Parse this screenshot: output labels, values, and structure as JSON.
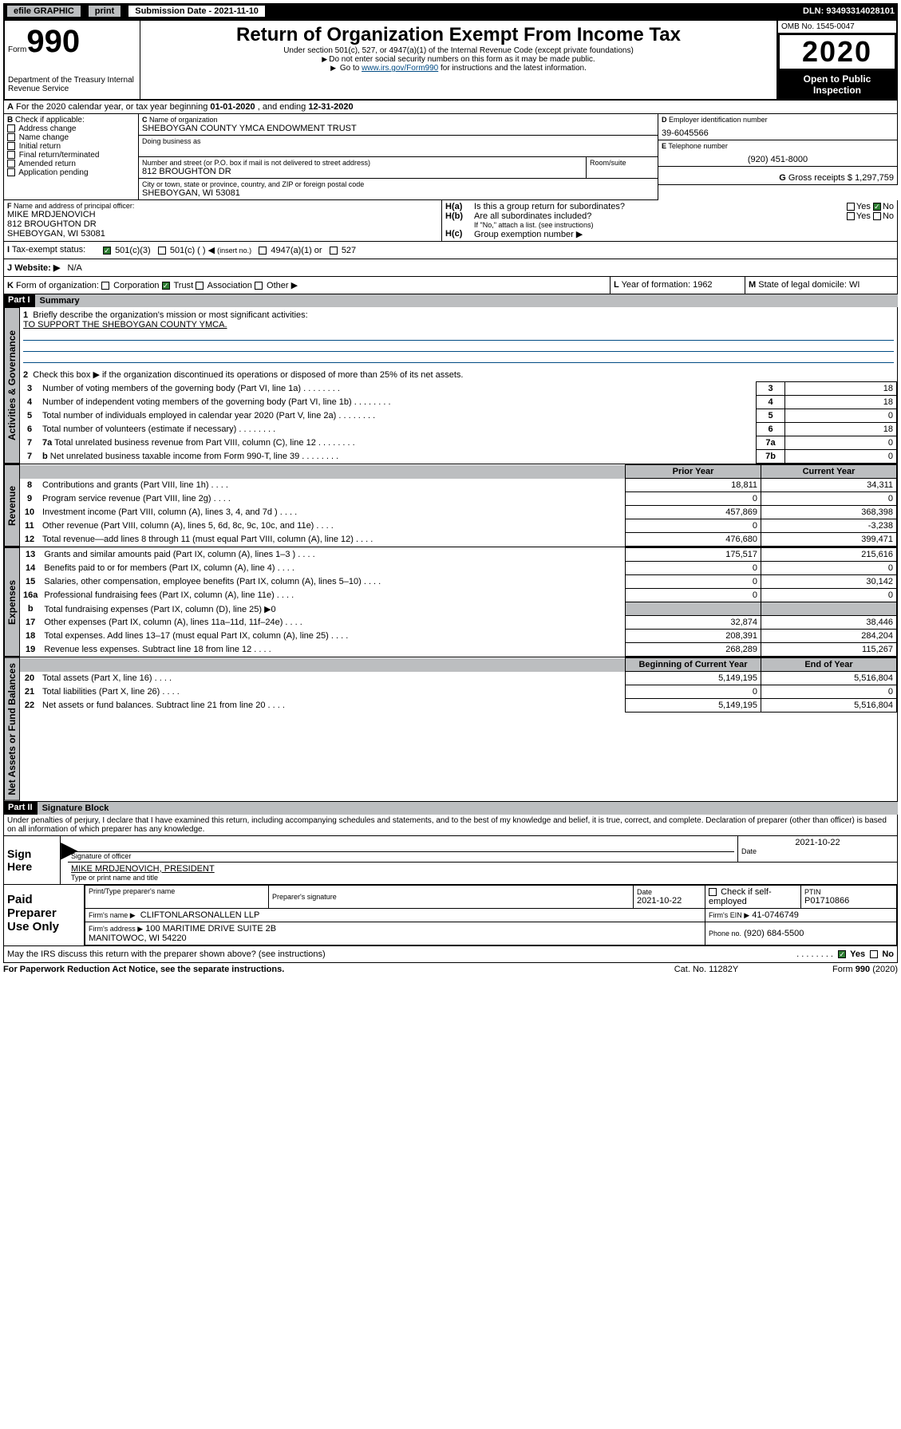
{
  "topbar": {
    "efile": "efile GRAPHIC",
    "print": "print",
    "sub_label": "Submission Date - 2021-11-10",
    "dln": "DLN: 93493314028101"
  },
  "header": {
    "form": "Form",
    "formno": "990",
    "dept": "Department of the Treasury\nInternal Revenue Service",
    "title": "Return of Organization Exempt From Income Tax",
    "subtitle": "Under section 501(c), 527, or 4947(a)(1) of the Internal Revenue Code (except private foundations)",
    "warn1": "Do not enter social security numbers on this form as it may be made public.",
    "warn2_pre": "Go to ",
    "warn2_link": "www.irs.gov/Form990",
    "warn2_post": " for instructions and the latest information.",
    "omb": "OMB No. 1545-0047",
    "year": "2020",
    "open": "Open to Public\nInspection"
  },
  "periodA": {
    "text_pre": "For the 2020 calendar year, or tax year beginning ",
    "begin": "01-01-2020",
    "mid": " , and ending ",
    "end": "12-31-2020"
  },
  "boxB": {
    "label": "Check if applicable:",
    "items": [
      "Address change",
      "Name change",
      "Initial return",
      "Final return/terminated",
      "Amended return",
      "Application pending"
    ]
  },
  "boxC": {
    "name_label": "Name of organization",
    "name": "SHEBOYGAN COUNTY YMCA ENDOWMENT TRUST",
    "dba_label": "Doing business as",
    "dba": "",
    "addr_label": "Number and street (or P.O. box if mail is not delivered to street address)",
    "room_label": "Room/suite",
    "addr": "812 BROUGHTON DR",
    "city_label": "City or town, state or province, country, and ZIP or foreign postal code",
    "city": "SHEBOYGAN, WI  53081"
  },
  "boxD": {
    "label": "Employer identification number",
    "val": "39-6045566"
  },
  "boxE": {
    "label": "Telephone number",
    "val": "(920) 451-8000"
  },
  "boxG": {
    "label": "Gross receipts $",
    "val": "1,297,759"
  },
  "boxF": {
    "label": "Name and address of principal officer:",
    "name": "MIKE MRDJENOVICH",
    "addr1": "812 BROUGHTON DR",
    "addr2": "SHEBOYGAN, WI  53081"
  },
  "boxH": {
    "a": "Is this a group return for subordinates?",
    "b": "Are all subordinates included?",
    "b_note": "If \"No,\" attach a list. (see instructions)",
    "c": "Group exemption number ▶",
    "yes": "Yes",
    "no": "No"
  },
  "boxI": {
    "label": "Tax-exempt status:",
    "o501c3": "501(c)(3)",
    "o501c": "501(c) (   )",
    "insert": "(insert no.)",
    "o4947": "4947(a)(1) or",
    "o527": "527"
  },
  "boxJ": {
    "label": "Website: ▶",
    "val": "N/A"
  },
  "boxK": {
    "label": "Form of organization:",
    "corp": "Corporation",
    "trust": "Trust",
    "assoc": "Association",
    "other": "Other ▶"
  },
  "boxL": {
    "label": "Year of formation:",
    "val": "1962"
  },
  "boxM": {
    "label": "State of legal domicile:",
    "val": "WI"
  },
  "part1": {
    "title": "Part I",
    "label": "Summary",
    "q1": "Briefly describe the organization's mission or most significant activities:",
    "mission": "TO SUPPORT THE SHEBOYGAN COUNTY YMCA.",
    "q2": "Check this box ▶    if the organization discontinued its operations or disposed of more than 25% of its net assets.",
    "lines": {
      "3": {
        "txt": "Number of voting members of the governing body (Part VI, line 1a)",
        "num": "3",
        "val": "18"
      },
      "4": {
        "txt": "Number of independent voting members of the governing body (Part VI, line 1b)",
        "num": "4",
        "val": "18"
      },
      "5": {
        "txt": "Total number of individuals employed in calendar year 2020 (Part V, line 2a)",
        "num": "5",
        "val": "0"
      },
      "6": {
        "txt": "Total number of volunteers (estimate if necessary)",
        "num": "6",
        "val": "18"
      },
      "7a": {
        "txt": "Total unrelated business revenue from Part VIII, column (C), line 12",
        "num": "7a",
        "val": "0"
      },
      "7b": {
        "txt": "Net unrelated business taxable income from Form 990-T, line 39",
        "num": "7b",
        "val": "0"
      }
    },
    "hdr_prior": "Prior Year",
    "hdr_curr": "Current Year",
    "rev": [
      {
        "n": "8",
        "txt": "Contributions and grants (Part VIII, line 1h)",
        "p": "18,811",
        "c": "34,311"
      },
      {
        "n": "9",
        "txt": "Program service revenue (Part VIII, line 2g)",
        "p": "0",
        "c": "0"
      },
      {
        "n": "10",
        "txt": "Investment income (Part VIII, column (A), lines 3, 4, and 7d )",
        "p": "457,869",
        "c": "368,398"
      },
      {
        "n": "11",
        "txt": "Other revenue (Part VIII, column (A), lines 5, 6d, 8c, 9c, 10c, and 11e)",
        "p": "0",
        "c": "-3,238"
      },
      {
        "n": "12",
        "txt": "Total revenue—add lines 8 through 11 (must equal Part VIII, column (A), line 12)",
        "p": "476,680",
        "c": "399,471"
      }
    ],
    "exp": [
      {
        "n": "13",
        "txt": "Grants and similar amounts paid (Part IX, column (A), lines 1–3 )",
        "p": "175,517",
        "c": "215,616"
      },
      {
        "n": "14",
        "txt": "Benefits paid to or for members (Part IX, column (A), line 4)",
        "p": "0",
        "c": "0"
      },
      {
        "n": "15",
        "txt": "Salaries, other compensation, employee benefits (Part IX, column (A), lines 5–10)",
        "p": "0",
        "c": "30,142"
      },
      {
        "n": "16a",
        "txt": "Professional fundraising fees (Part IX, column (A), line 11e)",
        "p": "0",
        "c": "0"
      },
      {
        "n": "b",
        "txt": "Total fundraising expenses (Part IX, column (D), line 25) ▶0",
        "p": "",
        "c": "",
        "shade": true
      },
      {
        "n": "17",
        "txt": "Other expenses (Part IX, column (A), lines 11a–11d, 11f–24e)",
        "p": "32,874",
        "c": "38,446"
      },
      {
        "n": "18",
        "txt": "Total expenses. Add lines 13–17 (must equal Part IX, column (A), line 25)",
        "p": "208,391",
        "c": "284,204"
      },
      {
        "n": "19",
        "txt": "Revenue less expenses. Subtract line 18 from line 12",
        "p": "268,289",
        "c": "115,267"
      }
    ],
    "hdr_boy": "Beginning of Current Year",
    "hdr_eoy": "End of Year",
    "net": [
      {
        "n": "20",
        "txt": "Total assets (Part X, line 16)",
        "p": "5,149,195",
        "c": "5,516,804"
      },
      {
        "n": "21",
        "txt": "Total liabilities (Part X, line 26)",
        "p": "0",
        "c": "0"
      },
      {
        "n": "22",
        "txt": "Net assets or fund balances. Subtract line 21 from line 20",
        "p": "5,149,195",
        "c": "5,516,804"
      }
    ],
    "vtabs": {
      "gov": "Activities & Governance",
      "rev": "Revenue",
      "exp": "Expenses",
      "net": "Net Assets or\nFund Balances"
    }
  },
  "part2": {
    "title": "Part II",
    "label": "Signature Block",
    "perjury": "Under penalties of perjury, I declare that I have examined this return, including accompanying schedules and statements, and to the best of my knowledge and belief, it is true, correct, and complete. Declaration of preparer (other than officer) is based on all information of which preparer has any knowledge.",
    "sign_here": "Sign\nHere",
    "sig_officer": "Signature of officer",
    "date": "Date",
    "sig_date": "2021-10-22",
    "typed": "MIKE MRDJENOVICH, PRESIDENT",
    "typed_label": "Type or print name and title",
    "paid": "Paid\nPreparer\nUse Only",
    "prep_name_label": "Print/Type preparer's name",
    "prep_sig_label": "Preparer's signature",
    "prep_date_label": "Date",
    "prep_date": "2021-10-22",
    "check_self": "Check      if self-employed",
    "ptin_label": "PTIN",
    "ptin": "P01710866",
    "firm_name_label": "Firm's name    ▶",
    "firm_name": "CLIFTONLARSONALLEN LLP",
    "firm_ein_label": "Firm's EIN ▶",
    "firm_ein": "41-0746749",
    "firm_addr_label": "Firm's address ▶",
    "firm_addr": "100 MARITIME DRIVE SUITE 2B\nMANITOWOC, WI  54220",
    "phone_label": "Phone no.",
    "phone": "(920) 684-5500",
    "discuss": "May the IRS discuss this return with the preparer shown above? (see instructions)",
    "yes": "Yes",
    "no": "No"
  },
  "footer": {
    "paperwork": "For Paperwork Reduction Act Notice, see the separate instructions.",
    "cat": "Cat. No. 11282Y",
    "form": "Form 990 (2020)"
  }
}
